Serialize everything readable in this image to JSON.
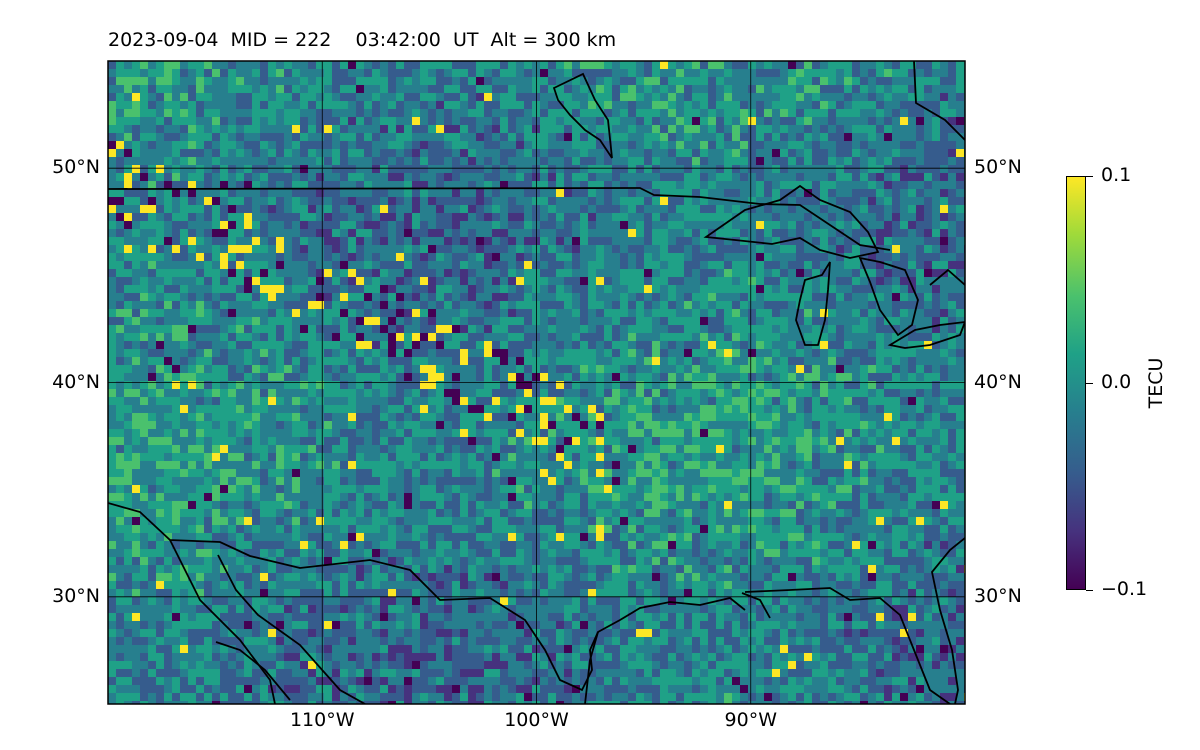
{
  "title": "2023-09-04  MID = 222    03:42:00  UT  Alt = 300 km",
  "map": {
    "lon_range": [
      -120,
      -80
    ],
    "lat_range": [
      25,
      55
    ],
    "lon_ticks": [
      {
        "value": -110,
        "label": "110°W"
      },
      {
        "value": -100,
        "label": "100°W"
      },
      {
        "value": -90,
        "label": "90°W"
      }
    ],
    "lat_ticks": [
      {
        "value": 50,
        "label": "50°N"
      },
      {
        "value": 40,
        "label": "40°N"
      },
      {
        "value": 30,
        "label": "30°N"
      }
    ],
    "gridlines": true,
    "colormap": "viridis"
  },
  "colorbar": {
    "label": "TECU",
    "min": -0.1,
    "max": 0.1,
    "ticks": [
      "0.1",
      "0.0",
      "−0.1"
    ],
    "colors": [
      "#440154",
      "#46327e",
      "#365c8d",
      "#277f8e",
      "#1fa187",
      "#4ac16d",
      "#9fda3a",
      "#fde725"
    ]
  }
}
